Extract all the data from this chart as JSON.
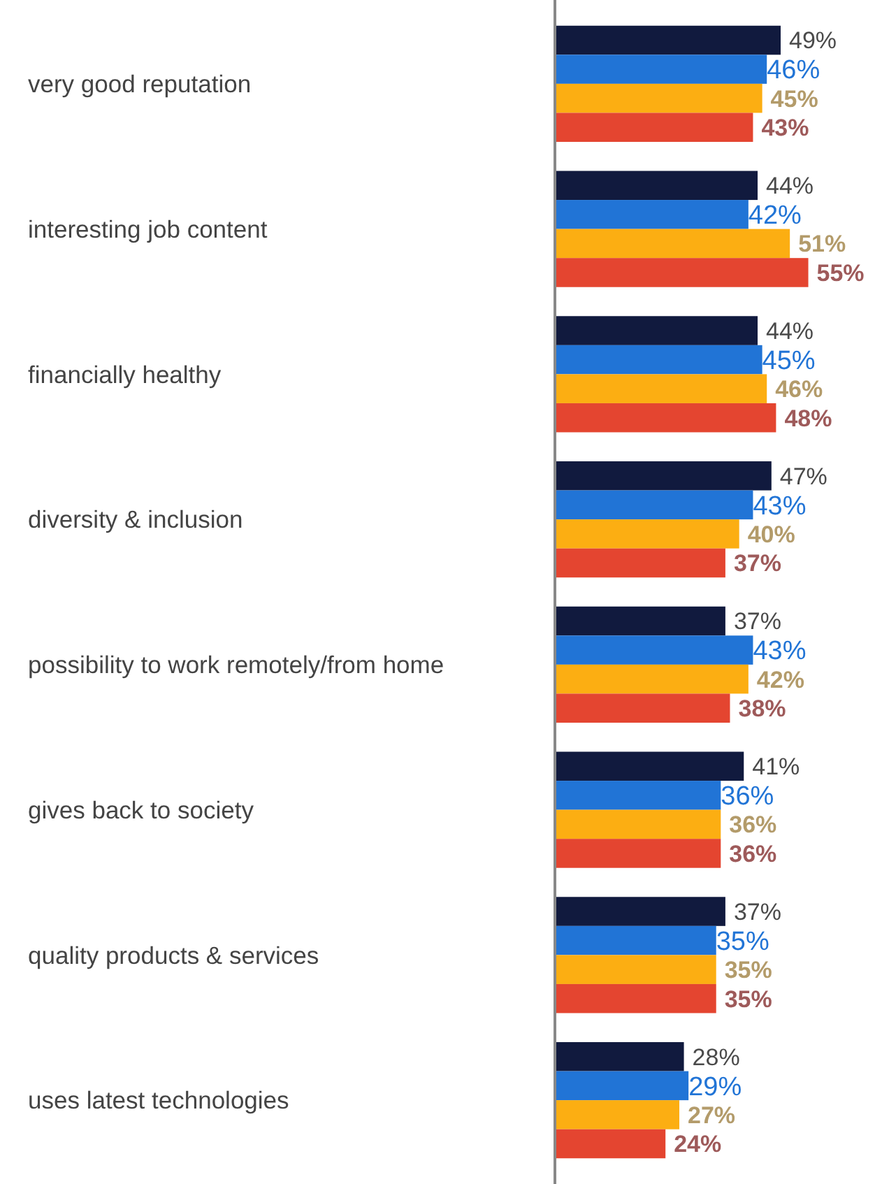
{
  "chart_data": {
    "type": "bar",
    "orientation": "horizontal",
    "categories": [
      "very good reputation",
      "interesting job content",
      "financially healthy",
      "diversity & inclusion",
      "possibility to work remotely/from home",
      "gives back to society",
      "quality products & services",
      "uses latest technologies"
    ],
    "series": [
      {
        "color": "#111a3e",
        "values": [
          49,
          44,
          44,
          47,
          37,
          41,
          37,
          28
        ],
        "value_labels": [
          "49%",
          "44%",
          "44%",
          "47%",
          "37%",
          "41%",
          "37%",
          "28%"
        ]
      },
      {
        "color": "#2174d6",
        "values": [
          46,
          42,
          45,
          43,
          43,
          36,
          35,
          29
        ],
        "value_labels": [
          "46%",
          "42%",
          "45%",
          "43%",
          "43%",
          "36%",
          "35%",
          "29%"
        ]
      },
      {
        "color": "#fcae12",
        "values": [
          45,
          51,
          46,
          40,
          42,
          36,
          35,
          27
        ],
        "value_labels": [
          "45%",
          "51%",
          "46%",
          "40%",
          "42%",
          "36%",
          "35%",
          "27%"
        ]
      },
      {
        "color": "#e44530",
        "values": [
          43,
          55,
          48,
          37,
          38,
          36,
          35,
          24
        ],
        "value_labels": [
          "43%",
          "55%",
          "48%",
          "37%",
          "38%",
          "36%",
          "35%",
          "24%"
        ]
      }
    ],
    "xlim": [
      0,
      71
    ],
    "tick_labels": "y"
  }
}
